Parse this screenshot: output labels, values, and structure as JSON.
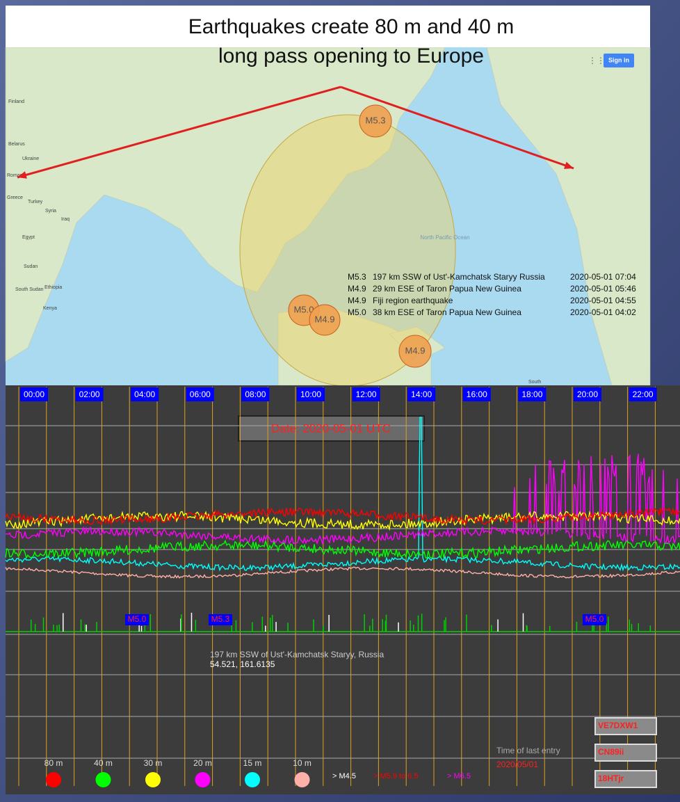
{
  "title": [
    "Earthquakes create 80 m and 40 m",
    "long pass opening to Europe"
  ],
  "map": {
    "sign_in": "Sign in",
    "labels": [
      "Finland",
      "Belarus",
      "Ukraine",
      "Romania",
      "Greece",
      "Turkey",
      "Syria",
      "Iraq",
      "Egypt",
      "Sudan",
      "South Sudan",
      "Ethiopia",
      "Kenya",
      "North Pacific Ocean",
      "South"
    ],
    "quakes": [
      "M5.3",
      "M5.0",
      "M4.9",
      "M4.9"
    ]
  },
  "quake_table": [
    [
      "M5.3",
      "197 km SSW of Ust'-Kamchatsk Staryy  Russia",
      "2020-05-01 07:04"
    ],
    [
      "M4.9",
      "29 km ESE of Taron  Papua New Guinea",
      "2020-05-01 05:46"
    ],
    [
      "M4.9",
      "Fiji region earthquake",
      "2020-05-01 04:55"
    ],
    [
      "M5.0",
      "38 km ESE of Taron  Papua New Guinea",
      "2020-05-01 04:02"
    ]
  ],
  "chart": {
    "times": [
      "00:00",
      "02:00",
      "04:00",
      "06:00",
      "08:00",
      "10:00",
      "12:00",
      "14:00",
      "16:00",
      "18:00",
      "20:00",
      "22:00"
    ],
    "date": "Date: 2020-05-01 UTC",
    "markers": [
      "M5.0",
      "M5.3",
      "M5.0"
    ],
    "detail": [
      "197 km SSW of Ust'-Kamchatsk Staryy, Russia",
      "54.521, 161.6135"
    ],
    "legend": [
      {
        "name": "80 m",
        "color": "#ff0000"
      },
      {
        "name": "40 m",
        "color": "#00ff00"
      },
      {
        "name": "30 m",
        "color": "#ffff00"
      },
      {
        "name": "20 m",
        "color": "#ff00ff"
      },
      {
        "name": "15 m",
        "color": "#00ffff"
      },
      {
        "name": "10 m",
        "color": "#ffb0a8"
      }
    ],
    "magnitudes": [
      {
        "name": "> M4.5",
        "color": "#ffffff"
      },
      {
        "name": "> M5.9 to 6.5",
        "color": "#ff0000"
      },
      {
        "name": "> M6.5",
        "color": "#ff00ff"
      }
    ],
    "last_entry_label": "Time of last entry",
    "last_entry_date": "2020/05/01",
    "station": [
      "VE7DXW1",
      "CN89ii",
      "18HTjr"
    ]
  }
}
